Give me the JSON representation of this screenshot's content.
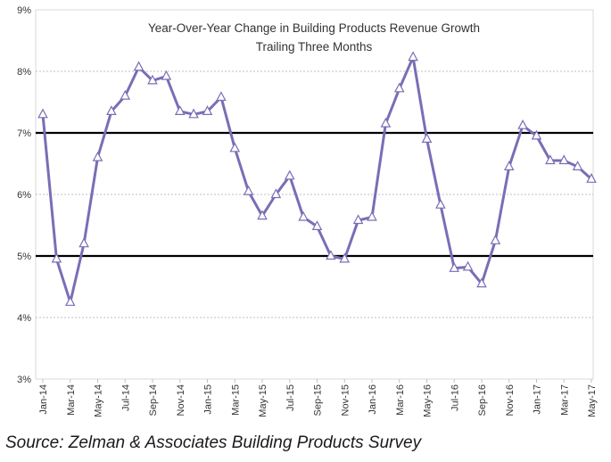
{
  "chart_data": {
    "type": "line",
    "title": "Year-Over-Year Change in Building Products Revenue Growth",
    "subtitle": "Trailing Three Months",
    "xlabel": "",
    "ylabel": "",
    "ylim": [
      3,
      9
    ],
    "y_ticks": [
      "3%",
      "4%",
      "5%",
      "6%",
      "7%",
      "8%",
      "9%"
    ],
    "y_tick_values": [
      3,
      4,
      5,
      6,
      7,
      8,
      9
    ],
    "grid": true,
    "reference_lines": [
      7,
      5
    ],
    "x_tick_labels": [
      "Jan-14",
      "Mar-14",
      "May-14",
      "Jul-14",
      "Sep-14",
      "Nov-14",
      "Jan-15",
      "Mar-15",
      "May-15",
      "Jul-15",
      "Sep-15",
      "Nov-15",
      "Jan-16",
      "Mar-16",
      "May-16",
      "Jul-16",
      "Sep-16",
      "Nov-16",
      "Jan-17",
      "Mar-17",
      "May-17"
    ],
    "categories": [
      "Jan-14",
      "Feb-14",
      "Mar-14",
      "Apr-14",
      "May-14",
      "Jun-14",
      "Jul-14",
      "Aug-14",
      "Sep-14",
      "Oct-14",
      "Nov-14",
      "Dec-14",
      "Jan-15",
      "Feb-15",
      "Mar-15",
      "Apr-15",
      "May-15",
      "Jun-15",
      "Jul-15",
      "Aug-15",
      "Sep-15",
      "Oct-15",
      "Nov-15",
      "Dec-15",
      "Jan-16",
      "Feb-16",
      "Mar-16",
      "Apr-16",
      "May-16",
      "Jun-16",
      "Jul-16",
      "Aug-16",
      "Sep-16",
      "Oct-16",
      "Nov-16",
      "Dec-16",
      "Jan-17",
      "Feb-17",
      "Mar-17",
      "Apr-17",
      "May-17"
    ],
    "series": [
      {
        "name": "Building Products Revenue Growth",
        "color": "#7b6db5",
        "marker": "open-triangle",
        "values": [
          7.3,
          4.95,
          4.25,
          5.2,
          6.6,
          7.35,
          7.6,
          8.07,
          7.85,
          7.92,
          7.35,
          7.3,
          7.35,
          7.58,
          6.75,
          6.05,
          5.65,
          6.0,
          6.3,
          5.63,
          5.48,
          5.0,
          4.95,
          5.58,
          5.63,
          7.15,
          7.72,
          8.23,
          6.9,
          5.83,
          4.8,
          4.82,
          4.55,
          5.25,
          6.45,
          7.12,
          6.95,
          6.55,
          6.55,
          6.45,
          6.25
        ]
      }
    ]
  },
  "source": "Source: Zelman & Associates Building Products Survey"
}
